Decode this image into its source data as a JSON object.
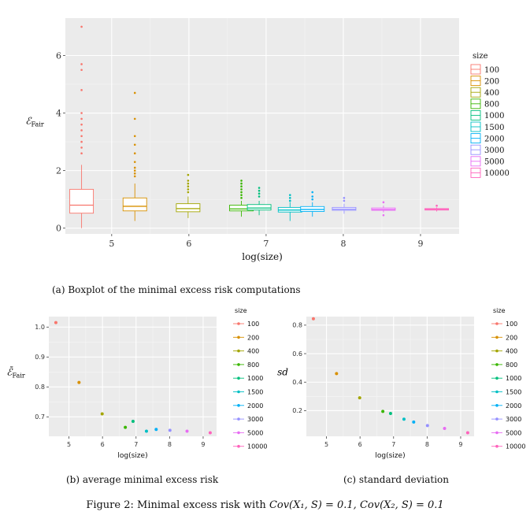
{
  "figure_caption": {
    "prefix": "Figure 2: Minimal excess risk with",
    "formula1": "Cov(X₁, S) = 0.1,",
    "formula2": "Cov(X₂, S) = 0.1"
  },
  "colors": {
    "panel_bg": "#ebebeb",
    "grid": "#ffffff",
    "s100": "#f8766d",
    "s200": "#d89000",
    "s400": "#a3a500",
    "s800": "#39b600",
    "s1000": "#00bf7d",
    "s1500": "#00bfc4",
    "s2000": "#00b0f6",
    "s3000": "#9590ff",
    "s5000": "#e76bf3",
    "s10000": "#ff62bc"
  },
  "chart_data": [
    {
      "type": "box",
      "caption": "(a) Boxplot of the minimal excess risk computations",
      "xlabel": "log(size)",
      "ylabel": "ℰFair",
      "xlim": [
        4.4,
        9.5
      ],
      "ylim": [
        -0.2,
        7.3
      ],
      "x_ticks": [
        5,
        6,
        7,
        8,
        9
      ],
      "y_ticks": [
        0,
        2,
        4,
        6
      ],
      "legend_title": "size",
      "legend_position": "right",
      "series": [
        {
          "name": "100",
          "color_key": "s100",
          "x": 4.61,
          "q1": 0.52,
          "median": 0.8,
          "q3": 1.35,
          "whisker_low": 0.0,
          "whisker_high": 2.2,
          "outliers": [
            2.6,
            2.8,
            3.0,
            3.2,
            3.4,
            3.6,
            3.8,
            4.0,
            4.8,
            5.5,
            5.7,
            7.0
          ]
        },
        {
          "name": "200",
          "color_key": "s200",
          "x": 5.3,
          "q1": 0.6,
          "median": 0.76,
          "q3": 1.05,
          "whisker_low": 0.25,
          "whisker_high": 1.55,
          "outliers": [
            1.8,
            1.9,
            2.0,
            2.1,
            2.3,
            2.6,
            2.9,
            3.2,
            3.8,
            4.7
          ]
        },
        {
          "name": "400",
          "color_key": "s400",
          "x": 5.99,
          "q1": 0.57,
          "median": 0.68,
          "q3": 0.85,
          "whisker_low": 0.35,
          "whisker_high": 1.1,
          "outliers": [
            1.25,
            1.35,
            1.45,
            1.55,
            1.65,
            1.85
          ]
        },
        {
          "name": "800",
          "color_key": "s800",
          "x": 6.68,
          "q1": 0.6,
          "median": 0.67,
          "q3": 0.8,
          "whisker_low": 0.4,
          "whisker_high": 0.95,
          "outliers": [
            1.05,
            1.15,
            1.25,
            1.35,
            1.45,
            1.55,
            1.65
          ]
        },
        {
          "name": "1000",
          "color_key": "s1000",
          "x": 6.91,
          "q1": 0.63,
          "median": 0.7,
          "q3": 0.82,
          "whisker_low": 0.45,
          "whisker_high": 0.95,
          "outliers": [
            1.1,
            1.2,
            1.3,
            1.4
          ]
        },
        {
          "name": "1500",
          "color_key": "s1500",
          "x": 7.31,
          "q1": 0.56,
          "median": 0.63,
          "q3": 0.72,
          "whisker_low": 0.25,
          "whisker_high": 0.9,
          "outliers": [
            0.95,
            1.05,
            1.15
          ]
        },
        {
          "name": "2000",
          "color_key": "s2000",
          "x": 7.6,
          "q1": 0.58,
          "median": 0.65,
          "q3": 0.75,
          "whisker_low": 0.4,
          "whisker_high": 0.9,
          "outliers": [
            1.0,
            1.1,
            1.25
          ]
        },
        {
          "name": "3000",
          "color_key": "s3000",
          "x": 8.01,
          "q1": 0.62,
          "median": 0.66,
          "q3": 0.72,
          "whisker_low": 0.5,
          "whisker_high": 0.85,
          "outliers": [
            0.95,
            1.05
          ]
        },
        {
          "name": "5000",
          "color_key": "s5000",
          "x": 8.52,
          "q1": 0.62,
          "median": 0.65,
          "q3": 0.7,
          "whisker_low": 0.55,
          "whisker_high": 0.78,
          "outliers": [
            0.45,
            0.9
          ]
        },
        {
          "name": "10000",
          "color_key": "s10000",
          "x": 9.21,
          "q1": 0.63,
          "median": 0.65,
          "q3": 0.68,
          "whisker_low": 0.58,
          "whisker_high": 0.72,
          "outliers": [
            0.78
          ]
        }
      ]
    },
    {
      "type": "scatter",
      "caption": "(b) average minimal excess risk",
      "xlabel": "log(size)",
      "ylabel": "ℰ̄Fair",
      "xlim": [
        4.4,
        9.4
      ],
      "ylim": [
        0.635,
        1.035
      ],
      "x_ticks": [
        5,
        6,
        7,
        8,
        9
      ],
      "y_ticks": [
        0.7,
        0.8,
        0.9,
        1.0
      ],
      "y_tick_labels": [
        "0.7",
        "0.8",
        "0.9",
        "1.0"
      ],
      "legend_title": "size",
      "legend_position": "right",
      "points": [
        {
          "name": "100",
          "color_key": "s100",
          "x": 4.61,
          "y": 1.015
        },
        {
          "name": "200",
          "color_key": "s200",
          "x": 5.3,
          "y": 0.815
        },
        {
          "name": "400",
          "color_key": "s400",
          "x": 5.99,
          "y": 0.71
        },
        {
          "name": "800",
          "color_key": "s800",
          "x": 6.68,
          "y": 0.665
        },
        {
          "name": "1000",
          "color_key": "s1000",
          "x": 6.91,
          "y": 0.685
        },
        {
          "name": "1500",
          "color_key": "s1500",
          "x": 7.31,
          "y": 0.652
        },
        {
          "name": "2000",
          "color_key": "s2000",
          "x": 7.6,
          "y": 0.658
        },
        {
          "name": "3000",
          "color_key": "s3000",
          "x": 8.01,
          "y": 0.655
        },
        {
          "name": "5000",
          "color_key": "s5000",
          "x": 8.52,
          "y": 0.652
        },
        {
          "name": "10000",
          "color_key": "s10000",
          "x": 9.21,
          "y": 0.647
        }
      ]
    },
    {
      "type": "scatter",
      "caption": "(c) standard deviation",
      "xlabel": "log(size)",
      "ylabel": "sd",
      "xlim": [
        4.4,
        9.4
      ],
      "ylim": [
        0.02,
        0.86
      ],
      "x_ticks": [
        5,
        6,
        7,
        8,
        9
      ],
      "y_ticks": [
        0.2,
        0.4,
        0.6,
        0.8
      ],
      "y_tick_labels": [
        "0.2",
        "0.4",
        "0.6",
        "0.8"
      ],
      "legend_title": "size",
      "legend_position": "right",
      "points": [
        {
          "name": "100",
          "color_key": "s100",
          "x": 4.61,
          "y": 0.845
        },
        {
          "name": "200",
          "color_key": "s200",
          "x": 5.3,
          "y": 0.46
        },
        {
          "name": "400",
          "color_key": "s400",
          "x": 5.99,
          "y": 0.29
        },
        {
          "name": "800",
          "color_key": "s800",
          "x": 6.68,
          "y": 0.195
        },
        {
          "name": "1000",
          "color_key": "s1000",
          "x": 6.91,
          "y": 0.18
        },
        {
          "name": "1500",
          "color_key": "s1500",
          "x": 7.31,
          "y": 0.14
        },
        {
          "name": "2000",
          "color_key": "s2000",
          "x": 7.6,
          "y": 0.12
        },
        {
          "name": "3000",
          "color_key": "s3000",
          "x": 8.01,
          "y": 0.095
        },
        {
          "name": "5000",
          "color_key": "s5000",
          "x": 8.52,
          "y": 0.075
        },
        {
          "name": "10000",
          "color_key": "s10000",
          "x": 9.21,
          "y": 0.045
        }
      ]
    }
  ]
}
